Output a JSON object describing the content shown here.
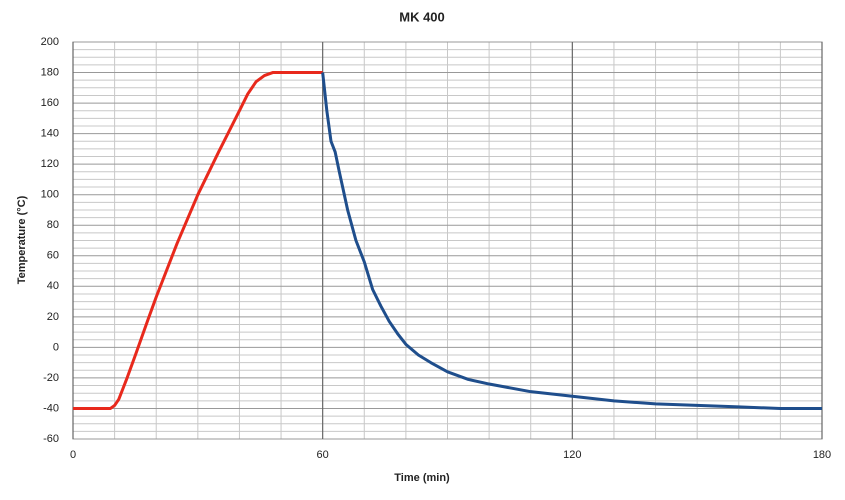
{
  "chart_data": {
    "type": "line",
    "title": "MK 400",
    "x_label": "Time (min)",
    "y_label": "Temperature (°C)",
    "xlim": [
      0,
      180
    ],
    "xticks": [
      0,
      60,
      120,
      180
    ],
    "ylim": [
      -60,
      200
    ],
    "yticks": [
      -60,
      -40,
      -20,
      0,
      20,
      40,
      60,
      80,
      100,
      120,
      140,
      160,
      180,
      200
    ],
    "grid": true,
    "series": [
      {
        "color": "#e8291c",
        "x": [
          0,
          5,
          9,
          10,
          11,
          12,
          13,
          15,
          18,
          20,
          25,
          30,
          35,
          40,
          42,
          44,
          46,
          48,
          50,
          55,
          60
        ],
        "values": [
          -40,
          -40,
          -40,
          -38,
          -34,
          -27,
          -20,
          -5,
          18,
          33,
          68,
          100,
          128,
          155,
          166,
          174,
          178,
          180,
          180,
          180,
          180
        ]
      },
      {
        "color": "#1f4e8c",
        "x": [
          60,
          61,
          62,
          63,
          64,
          66,
          68,
          70,
          72,
          74,
          76,
          78,
          80,
          83,
          86,
          90,
          95,
          100,
          110,
          120,
          130,
          140,
          150,
          160,
          170,
          180
        ],
        "values": [
          180,
          155,
          135,
          128,
          115,
          90,
          70,
          56,
          38,
          27,
          17,
          9,
          2,
          -5,
          -10,
          -16,
          -21,
          -24,
          -29,
          -32,
          -35,
          -37,
          -38,
          -39,
          -40,
          -40
        ]
      }
    ]
  }
}
